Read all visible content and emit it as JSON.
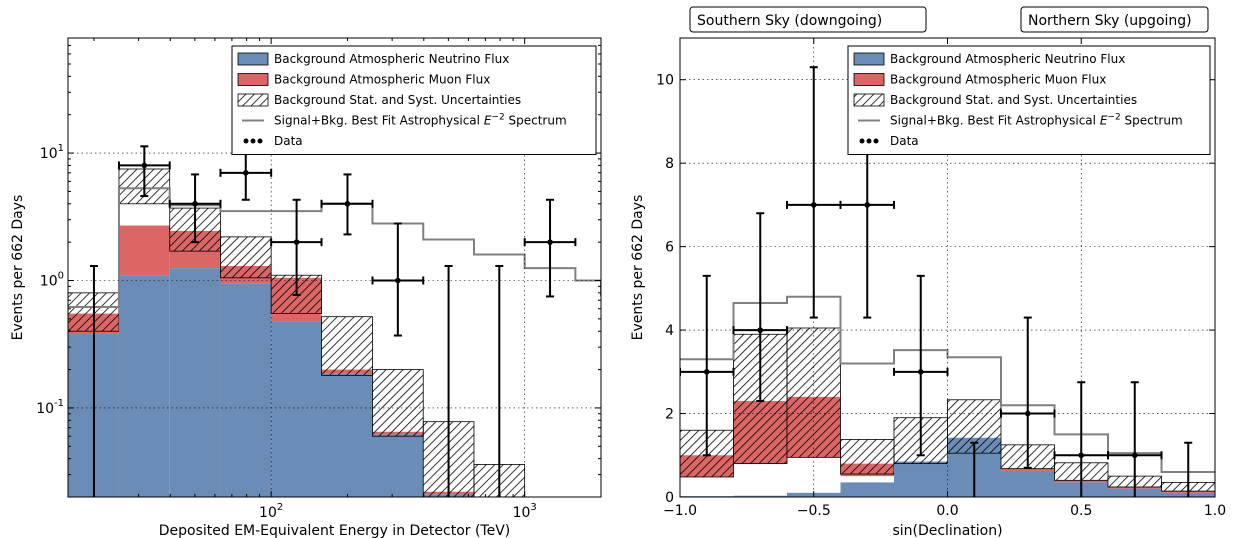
{
  "colors": {
    "neutrino": "#6b8cb6",
    "muon": "#dc6566",
    "signal_line": "#808080",
    "data": "#000000"
  },
  "legend": [
    {
      "key": "neutrino",
      "label": "Background Atmospheric Neutrino Flux"
    },
    {
      "key": "muon",
      "label": "Background Atmospheric Muon Flux"
    },
    {
      "key": "uncert",
      "label": "Background Stat. and Syst. Uncertainties"
    },
    {
      "key": "signal",
      "label": "Signal+Bkg. Best Fit Astrophysical ",
      "sup": "−2",
      "label_suffix": " Spectrum"
    },
    {
      "key": "data",
      "label": "Data"
    }
  ],
  "chart_data": [
    {
      "type": "area",
      "xscale": "log",
      "yscale": "log",
      "xlabel": "Deposited EM-Equivalent Energy in Detector (TeV)",
      "ylabel": "Events per 662 Days",
      "xlim": [
        15.8,
        2000
      ],
      "ylim": [
        0.02,
        80
      ],
      "xticks": [
        {
          "v": 100,
          "b": "10",
          "e": "2"
        },
        {
          "v": 1000,
          "b": "10",
          "e": "3"
        }
      ],
      "yticks": [
        {
          "v": 0.1,
          "b": "10",
          "e": "-1"
        },
        {
          "v": 1,
          "b": "10",
          "e": "0"
        },
        {
          "v": 10,
          "b": "10",
          "e": "1"
        }
      ],
      "edges": [
        15.8,
        25.1,
        39.8,
        63.1,
        100,
        158,
        251,
        398,
        631,
        1000,
        1585,
        2000
      ],
      "neutrino": [
        0.38,
        1.1,
        1.25,
        0.95,
        0.48,
        0.185,
        0.062,
        0.021,
        0.0,
        0.0,
        0.0
      ],
      "muon_top": [
        0.55,
        2.7,
        2.45,
        1.3,
        1.05,
        0.2,
        0.065,
        0.022,
        0.0,
        0.0,
        0.0
      ],
      "unc_low": [
        0.4,
        4.0,
        1.7,
        1.05,
        0.55,
        0.18,
        0.06,
        0.02,
        0.0,
        0.0,
        0.0
      ],
      "unc_high": [
        0.8,
        7.5,
        3.7,
        2.2,
        1.1,
        0.52,
        0.2,
        0.078,
        0.036,
        0.0,
        0.0
      ],
      "signal": [
        0.62,
        5.3,
        3.9,
        3.5,
        3.5,
        4.0,
        2.8,
        2.1,
        1.6,
        1.25,
        1.0,
        0.75
      ],
      "data": [
        {
          "x": 20,
          "y": 0.02,
          "ylo": 0.02,
          "yhi": 1.3
        },
        {
          "x": 31.6,
          "y": 8,
          "ylo": 4.6,
          "yhi": 11.3,
          "xlo": 25.1,
          "xhi": 39.8
        },
        {
          "x": 50.1,
          "y": 4,
          "ylo": 2.0,
          "yhi": 6.8,
          "xlo": 39.8,
          "xhi": 63.1
        },
        {
          "x": 79.4,
          "y": 7,
          "ylo": 4.3,
          "yhi": 10.3,
          "xlo": 63.1,
          "xhi": 100
        },
        {
          "x": 126,
          "y": 2,
          "ylo": 0.77,
          "yhi": 4.3,
          "xlo": 100,
          "xhi": 158
        },
        {
          "x": 200,
          "y": 4,
          "ylo": 2.3,
          "yhi": 6.8,
          "xlo": 158,
          "xhi": 251
        },
        {
          "x": 316,
          "y": 1,
          "ylo": 0.37,
          "yhi": 2.8,
          "xlo": 251,
          "xhi": 398
        },
        {
          "x": 501,
          "y": 0.02,
          "ylo": 0.02,
          "yhi": 1.3
        },
        {
          "x": 794,
          "y": 0.02,
          "ylo": 0.02,
          "yhi": 1.3
        },
        {
          "x": 1259,
          "y": 2,
          "ylo": 0.75,
          "yhi": 4.3,
          "xlo": 1000,
          "xhi": 1585
        }
      ]
    },
    {
      "type": "area",
      "xscale": "linear",
      "yscale": "linear",
      "xlabel": "sin(Declination)",
      "ylabel": "Events per 662 Days",
      "xlim": [
        -1.0,
        1.0
      ],
      "ylim": [
        0,
        11
      ],
      "xticks": [
        {
          "v": -1.0,
          "t": "−1.0"
        },
        {
          "v": -0.5,
          "t": "−0.5"
        },
        {
          "v": 0.0,
          "t": "0.0"
        },
        {
          "v": 0.5,
          "t": "0.5"
        },
        {
          "v": 1.0,
          "t": "1.0"
        }
      ],
      "yticks": [
        {
          "v": 0,
          "t": "0"
        },
        {
          "v": 2,
          "t": "2"
        },
        {
          "v": 4,
          "t": "4"
        },
        {
          "v": 6,
          "t": "6"
        },
        {
          "v": 8,
          "t": "8"
        },
        {
          "v": 10,
          "t": "10"
        }
      ],
      "sky_labels": [
        "Southern Sky (downgoing)",
        "Northern Sky (upgoing)"
      ],
      "edges": [
        -1.0,
        -0.8,
        -0.6,
        -0.4,
        -0.2,
        0.0,
        0.2,
        0.4,
        0.6,
        0.8,
        1.0
      ],
      "neutrino": [
        0.02,
        0.03,
        0.1,
        0.35,
        0.85,
        1.42,
        0.6,
        0.35,
        0.2,
        0.1
      ],
      "muon_top": [
        1.0,
        2.3,
        2.4,
        0.8,
        0.9,
        1.1,
        0.68,
        0.4,
        0.25,
        0.15
      ],
      "muon_bottom": [
        0.48,
        0.8,
        0.95,
        0.5,
        0.9,
        1.05,
        0.6,
        0.35,
        0.2,
        0.1
      ],
      "unc_low": [
        0.48,
        0.8,
        0.95,
        0.55,
        0.8,
        1.05,
        0.68,
        0.4,
        0.24,
        0.14
      ],
      "unc_high": [
        1.6,
        3.9,
        4.05,
        1.38,
        1.9,
        2.33,
        1.25,
        0.82,
        0.5,
        0.35
      ],
      "signal": [
        3.3,
        4.65,
        4.8,
        3.2,
        3.52,
        3.35,
        2.2,
        1.5,
        1.05,
        0.6
      ],
      "data": [
        {
          "x": -0.9,
          "y": 3,
          "ylo": 1.0,
          "yhi": 5.3,
          "xlo": -1.0,
          "xhi": -0.8
        },
        {
          "x": -0.7,
          "y": 4,
          "ylo": 2.3,
          "yhi": 6.8,
          "xlo": -0.8,
          "xhi": -0.6
        },
        {
          "x": -0.5,
          "y": 7,
          "ylo": 4.3,
          "yhi": 10.3,
          "xlo": -0.6,
          "xhi": -0.4
        },
        {
          "x": -0.3,
          "y": 7,
          "ylo": 4.3,
          "yhi": 10.3,
          "xlo": -0.4,
          "xhi": -0.2
        },
        {
          "x": -0.1,
          "y": 3,
          "ylo": 1.0,
          "yhi": 5.3,
          "xlo": -0.2,
          "xhi": 0.0
        },
        {
          "x": 0.1,
          "y": 0,
          "ylo": 0,
          "yhi": 1.3
        },
        {
          "x": 0.3,
          "y": 2,
          "ylo": 0.7,
          "yhi": 4.3,
          "xlo": 0.2,
          "xhi": 0.4
        },
        {
          "x": 0.5,
          "y": 1,
          "ylo": 0,
          "yhi": 2.75,
          "xlo": 0.4,
          "xhi": 0.6
        },
        {
          "x": 0.7,
          "y": 1,
          "ylo": 0,
          "yhi": 2.75,
          "xlo": 0.6,
          "xhi": 0.8
        },
        {
          "x": 0.9,
          "y": 0,
          "ylo": 0,
          "yhi": 1.3
        }
      ]
    }
  ]
}
